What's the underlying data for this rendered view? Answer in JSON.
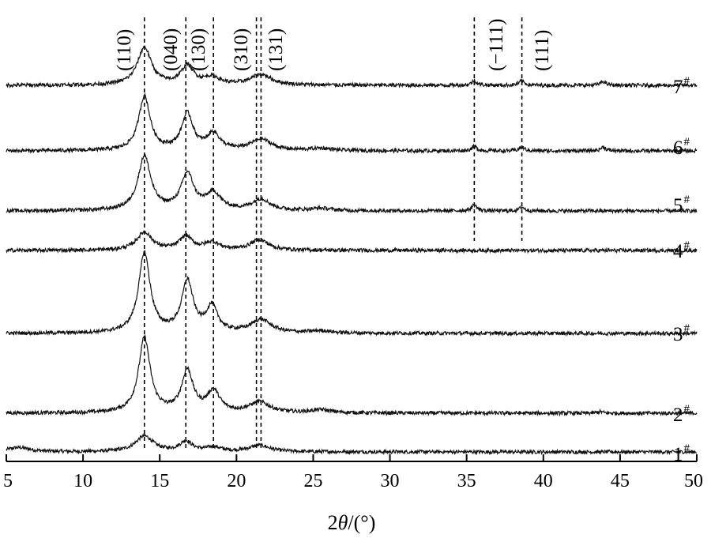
{
  "chart_data": {
    "type": "line",
    "title": "",
    "xlabel": "2θ/(°)",
    "xlabel_prefix": "2",
    "xlabel_theta": "θ",
    "xlabel_suffix": "/(°)",
    "ylabel": "",
    "xlim": [
      5,
      50
    ],
    "x_ticks": [
      5,
      10,
      15,
      20,
      25,
      30,
      35,
      40,
      45,
      50
    ],
    "grid": false,
    "legend": "none",
    "peak_markers": [
      {
        "label": "(110)",
        "x": 14.0,
        "y_range": [
          "1#",
          "7#"
        ]
      },
      {
        "label": "(040)",
        "x": 16.7,
        "y_range": [
          "1#",
          "7#"
        ]
      },
      {
        "label": "(130)",
        "x": 18.5,
        "y_range": [
          "1#",
          "7#"
        ]
      },
      {
        "label": "(310)",
        "x": 21.3,
        "y_range": [
          "1#",
          "7#"
        ]
      },
      {
        "label": "(131)",
        "x": 21.6,
        "y_range": [
          "1#",
          "7#"
        ]
      },
      {
        "label": "(−111)",
        "x": 35.5,
        "y_range": [
          "4#",
          "7#"
        ]
      },
      {
        "label": "(111)",
        "x": 38.6,
        "y_range": [
          "4#",
          "7#"
        ]
      }
    ],
    "series": [
      {
        "name": "1#",
        "name_main": "1",
        "name_sup": "#",
        "baseline_intensity": 0,
        "noise": 2.5,
        "peaks": [
          {
            "x": 5.8,
            "h": 6,
            "w": 0.9
          },
          {
            "x": 14.0,
            "h": 22,
            "w": 0.7
          },
          {
            "x": 16.7,
            "h": 14,
            "w": 0.5
          },
          {
            "x": 18.5,
            "h": 6,
            "w": 0.6
          },
          {
            "x": 21.5,
            "h": 9,
            "w": 0.8
          }
        ]
      },
      {
        "name": "2#",
        "name_main": "2",
        "name_sup": "#",
        "baseline_intensity": 0,
        "noise": 2.5,
        "peaks": [
          {
            "x": 14.0,
            "h": 100,
            "w": 0.45
          },
          {
            "x": 16.8,
            "h": 55,
            "w": 0.45
          },
          {
            "x": 18.5,
            "h": 28,
            "w": 0.5
          },
          {
            "x": 21.5,
            "h": 14,
            "w": 0.8
          },
          {
            "x": 25.5,
            "h": 4,
            "w": 0.8
          },
          {
            "x": 43.7,
            "h": 2,
            "w": 0.2
          }
        ]
      },
      {
        "name": "3#",
        "name_main": "3",
        "name_sup": "#",
        "baseline_intensity": 0,
        "noise": 2.5,
        "peaks": [
          {
            "x": 14.0,
            "h": 110,
            "w": 0.45
          },
          {
            "x": 16.8,
            "h": 70,
            "w": 0.45
          },
          {
            "x": 18.4,
            "h": 35,
            "w": 0.45
          },
          {
            "x": 21.6,
            "h": 18,
            "w": 0.8
          },
          {
            "x": 25.5,
            "h": 3,
            "w": 0.8
          }
        ]
      },
      {
        "name": "4#",
        "name_main": "4",
        "name_sup": "#",
        "baseline_intensity": 0,
        "noise": 2.5,
        "peaks": [
          {
            "x": 14.0,
            "h": 24,
            "w": 0.6
          },
          {
            "x": 16.7,
            "h": 18,
            "w": 0.5
          },
          {
            "x": 18.4,
            "h": 10,
            "w": 0.6
          },
          {
            "x": 21.5,
            "h": 14,
            "w": 0.7
          }
        ]
      },
      {
        "name": "5#",
        "name_main": "5",
        "name_sup": "#",
        "baseline_intensity": 0,
        "noise": 2.5,
        "peaks": [
          {
            "x": 14.0,
            "h": 72,
            "w": 0.5
          },
          {
            "x": 16.8,
            "h": 48,
            "w": 0.5
          },
          {
            "x": 18.5,
            "h": 22,
            "w": 0.6
          },
          {
            "x": 21.6,
            "h": 15,
            "w": 0.7
          },
          {
            "x": 25.5,
            "h": 3,
            "w": 0.8
          },
          {
            "x": 35.5,
            "h": 8,
            "w": 0.2
          },
          {
            "x": 38.6,
            "h": 5,
            "w": 0.2
          }
        ]
      },
      {
        "name": "6#",
        "name_main": "6",
        "name_sup": "#",
        "baseline_intensity": 0,
        "noise": 2.5,
        "peaks": [
          {
            "x": 14.0,
            "h": 72,
            "w": 0.45
          },
          {
            "x": 16.8,
            "h": 48,
            "w": 0.45
          },
          {
            "x": 18.5,
            "h": 22,
            "w": 0.5
          },
          {
            "x": 21.6,
            "h": 15,
            "w": 0.8
          },
          {
            "x": 25.5,
            "h": 3,
            "w": 0.8
          },
          {
            "x": 35.5,
            "h": 6,
            "w": 0.2
          },
          {
            "x": 38.6,
            "h": 5,
            "w": 0.2
          },
          {
            "x": 43.9,
            "h": 5,
            "w": 0.2
          }
        ]
      },
      {
        "name": "7#",
        "name_main": "7",
        "name_sup": "#",
        "baseline_intensity": 0,
        "noise": 2.5,
        "peaks": [
          {
            "x": 14.0,
            "h": 50,
            "w": 0.55
          },
          {
            "x": 16.8,
            "h": 25,
            "w": 0.5
          },
          {
            "x": 18.4,
            "h": 10,
            "w": 0.6
          },
          {
            "x": 21.6,
            "h": 14,
            "w": 0.8
          },
          {
            "x": 35.5,
            "h": 6,
            "w": 0.2
          },
          {
            "x": 38.6,
            "h": 6,
            "w": 0.2
          },
          {
            "x": 43.9,
            "h": 5,
            "w": 0.2
          }
        ]
      }
    ]
  }
}
